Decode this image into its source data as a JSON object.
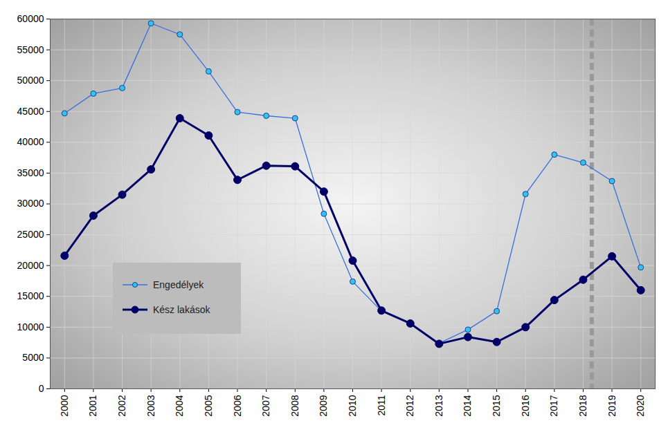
{
  "chart_data": {
    "type": "line",
    "x": [
      2000,
      2001,
      2002,
      2003,
      2004,
      2005,
      2006,
      2007,
      2008,
      2009,
      2010,
      2011,
      2012,
      2013,
      2014,
      2015,
      2016,
      2017,
      2018,
      2019,
      2020
    ],
    "series": [
      {
        "name": "Engedélyek",
        "color": "#3a6ee0",
        "marker": "circle",
        "line_style": "solid",
        "values": [
          44700,
          47900,
          48800,
          59300,
          57500,
          51500,
          44900,
          44300,
          43900,
          28400,
          17400,
          12600,
          10600,
          7400,
          9600,
          12600,
          31600,
          38000,
          36700,
          33700,
          19700
        ]
      },
      {
        "name": "Kész lakások",
        "color": "#000066",
        "marker": "circle",
        "line_style": "solid",
        "values": [
          21600,
          28100,
          31500,
          35600,
          43900,
          41100,
          33900,
          36200,
          36100,
          32000,
          20800,
          12700,
          10600,
          7300,
          8400,
          7600,
          10000,
          14400,
          17700,
          21500,
          16000
        ]
      }
    ],
    "xlim": [
      1999.5,
      2020.5
    ],
    "xticks": [
      2000,
      2001,
      2002,
      2003,
      2004,
      2005,
      2006,
      2007,
      2008,
      2009,
      2010,
      2011,
      2012,
      2013,
      2014,
      2015,
      2016,
      2017,
      2018,
      2019,
      2020
    ],
    "ylim": [
      0,
      60000
    ],
    "yticks": [
      0,
      5000,
      10000,
      15000,
      20000,
      25000,
      30000,
      35000,
      40000,
      45000,
      50000,
      55000,
      60000
    ],
    "grid": true,
    "legend": "lower left",
    "reference_line": {
      "x": 2018.3,
      "color": "#999999",
      "line_style": "dashed"
    }
  }
}
